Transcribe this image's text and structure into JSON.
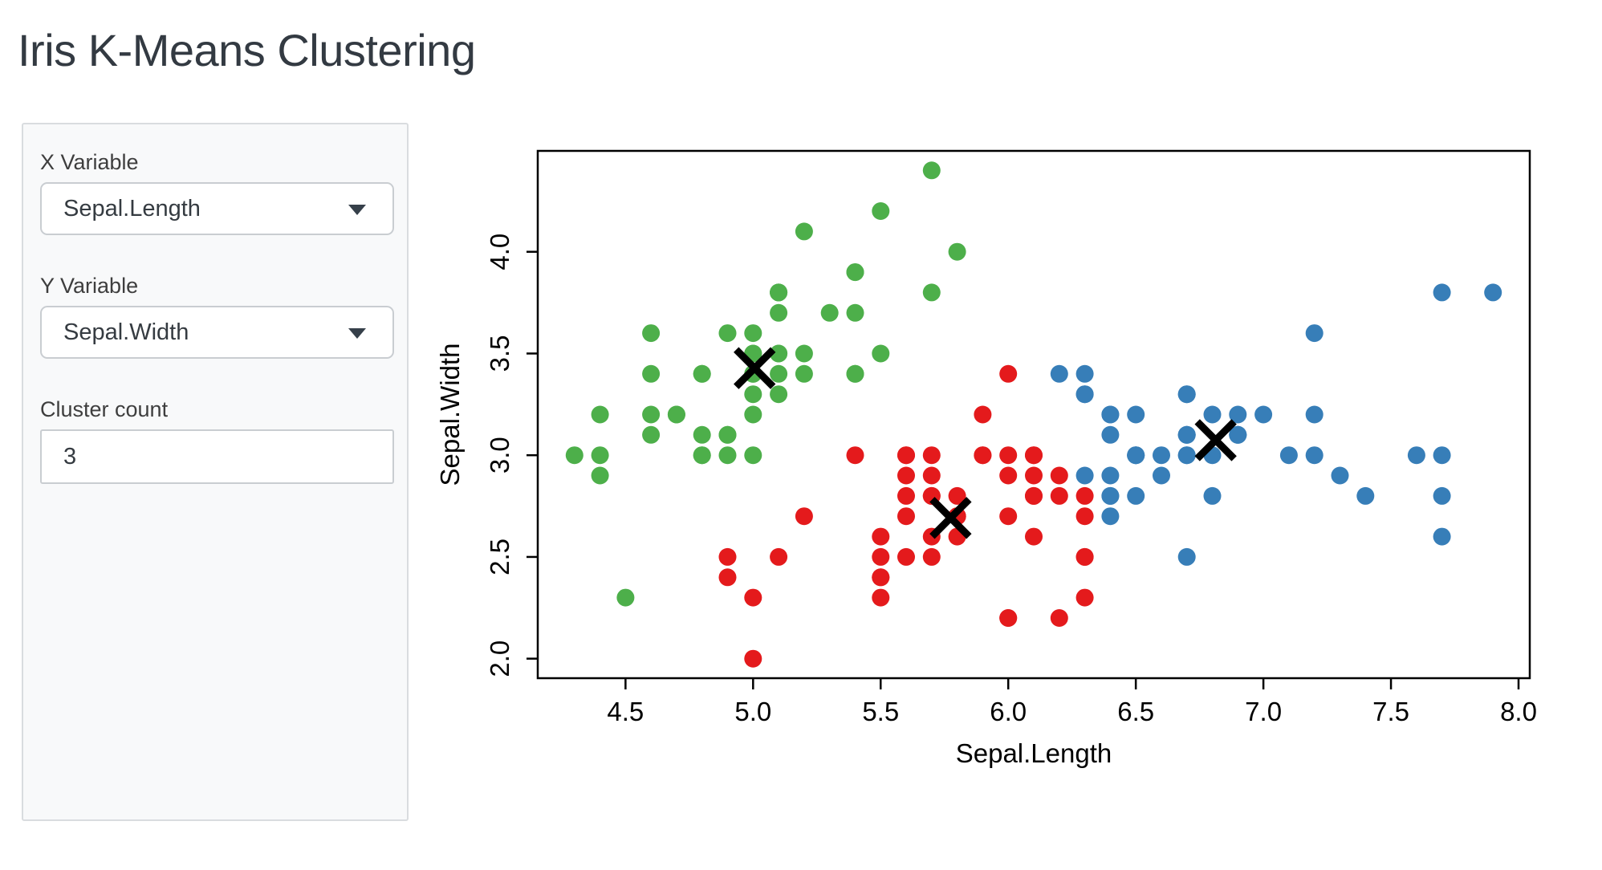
{
  "page": {
    "title": "Iris K-Means Clustering"
  },
  "sidebar": {
    "x_variable": {
      "label": "X Variable",
      "value": "Sepal.Length"
    },
    "y_variable": {
      "label": "Y Variable",
      "value": "Sepal.Width"
    },
    "cluster_count": {
      "label": "Cluster count",
      "value": "3"
    }
  },
  "chart_data": {
    "type": "scatter",
    "xlabel": "Sepal.Length",
    "ylabel": "Sepal.Width",
    "xlim": [
      4.156,
      8.044
    ],
    "ylim": [
      1.904,
      4.496
    ],
    "x_ticks": [
      4.5,
      5.0,
      5.5,
      6.0,
      6.5,
      7.0,
      7.5,
      8.0
    ],
    "y_ticks": [
      2.0,
      2.5,
      3.0,
      3.5,
      4.0
    ],
    "grid": false,
    "point_radius": 11,
    "frame_color": "#000000",
    "series": [
      {
        "name": "cluster-green",
        "color": "#4DAF4A",
        "points": [
          [
            5.1,
            3.5
          ],
          [
            4.9,
            3.0
          ],
          [
            4.7,
            3.2
          ],
          [
            4.6,
            3.1
          ],
          [
            5.0,
            3.6
          ],
          [
            5.4,
            3.9
          ],
          [
            4.6,
            3.4
          ],
          [
            5.0,
            3.4
          ],
          [
            4.4,
            2.9
          ],
          [
            4.9,
            3.1
          ],
          [
            5.4,
            3.7
          ],
          [
            4.8,
            3.4
          ],
          [
            4.8,
            3.0
          ],
          [
            4.3,
            3.0
          ],
          [
            5.8,
            4.0
          ],
          [
            5.7,
            4.4
          ],
          [
            5.4,
            3.9
          ],
          [
            5.1,
            3.5
          ],
          [
            5.7,
            3.8
          ],
          [
            5.1,
            3.8
          ],
          [
            5.4,
            3.4
          ],
          [
            5.1,
            3.7
          ],
          [
            4.6,
            3.6
          ],
          [
            5.1,
            3.3
          ],
          [
            4.8,
            3.4
          ],
          [
            5.0,
            3.0
          ],
          [
            5.0,
            3.4
          ],
          [
            5.2,
            3.5
          ],
          [
            5.2,
            3.4
          ],
          [
            4.7,
            3.2
          ],
          [
            4.8,
            3.1
          ],
          [
            5.4,
            3.4
          ],
          [
            5.2,
            4.1
          ],
          [
            5.5,
            4.2
          ],
          [
            4.9,
            3.1
          ],
          [
            5.0,
            3.2
          ],
          [
            5.5,
            3.5
          ],
          [
            4.9,
            3.6
          ],
          [
            4.4,
            3.0
          ],
          [
            5.1,
            3.4
          ],
          [
            5.0,
            3.5
          ],
          [
            4.5,
            2.3
          ],
          [
            4.4,
            3.2
          ],
          [
            5.0,
            3.5
          ],
          [
            5.1,
            3.8
          ],
          [
            4.8,
            3.0
          ],
          [
            5.1,
            3.8
          ],
          [
            4.6,
            3.2
          ],
          [
            5.3,
            3.7
          ],
          [
            5.0,
            3.3
          ]
        ]
      },
      {
        "name": "cluster-red",
        "color": "#E41A1C",
        "points": [
          [
            5.5,
            2.3
          ],
          [
            5.7,
            2.8
          ],
          [
            4.9,
            2.4
          ],
          [
            5.2,
            2.7
          ],
          [
            5.0,
            2.0
          ],
          [
            5.9,
            3.0
          ],
          [
            6.0,
            2.2
          ],
          [
            6.1,
            2.9
          ],
          [
            5.6,
            2.9
          ],
          [
            5.6,
            3.0
          ],
          [
            5.8,
            2.7
          ],
          [
            6.2,
            2.2
          ],
          [
            5.6,
            2.5
          ],
          [
            5.9,
            3.2
          ],
          [
            6.1,
            2.8
          ],
          [
            6.3,
            2.5
          ],
          [
            6.1,
            2.8
          ],
          [
            6.0,
            2.9
          ],
          [
            5.7,
            2.6
          ],
          [
            5.5,
            2.4
          ],
          [
            5.5,
            2.4
          ],
          [
            5.8,
            2.7
          ],
          [
            6.0,
            2.7
          ],
          [
            5.4,
            3.0
          ],
          [
            6.0,
            3.4
          ],
          [
            6.3,
            2.3
          ],
          [
            5.6,
            3.0
          ],
          [
            5.5,
            2.5
          ],
          [
            5.5,
            2.6
          ],
          [
            6.1,
            3.0
          ],
          [
            5.8,
            2.6
          ],
          [
            5.0,
            2.3
          ],
          [
            5.6,
            2.7
          ],
          [
            5.7,
            3.0
          ],
          [
            5.7,
            2.9
          ],
          [
            6.2,
            2.9
          ],
          [
            5.1,
            2.5
          ],
          [
            5.7,
            2.8
          ],
          [
            5.8,
            2.7
          ],
          [
            4.9,
            2.5
          ],
          [
            5.7,
            2.5
          ],
          [
            5.8,
            2.8
          ],
          [
            6.0,
            2.2
          ],
          [
            5.6,
            2.8
          ],
          [
            6.3,
            2.7
          ],
          [
            6.2,
            2.8
          ],
          [
            6.1,
            3.0
          ],
          [
            6.3,
            2.8
          ],
          [
            6.1,
            2.6
          ],
          [
            6.0,
            3.0
          ],
          [
            5.8,
            2.7
          ],
          [
            6.3,
            2.5
          ],
          [
            5.9,
            3.0
          ]
        ]
      },
      {
        "name": "cluster-blue",
        "color": "#377EB8",
        "points": [
          [
            7.0,
            3.2
          ],
          [
            6.4,
            3.2
          ],
          [
            6.9,
            3.1
          ],
          [
            6.5,
            2.8
          ],
          [
            6.3,
            3.3
          ],
          [
            6.6,
            2.9
          ],
          [
            6.7,
            3.1
          ],
          [
            6.4,
            2.9
          ],
          [
            6.6,
            3.0
          ],
          [
            6.8,
            2.8
          ],
          [
            6.7,
            3.0
          ],
          [
            6.7,
            3.1
          ],
          [
            6.3,
            3.3
          ],
          [
            7.1,
            3.0
          ],
          [
            6.3,
            2.9
          ],
          [
            6.5,
            3.0
          ],
          [
            7.6,
            3.0
          ],
          [
            7.3,
            2.9
          ],
          [
            6.7,
            2.5
          ],
          [
            7.2,
            3.6
          ],
          [
            6.5,
            3.2
          ],
          [
            6.4,
            2.7
          ],
          [
            6.8,
            3.0
          ],
          [
            6.4,
            3.2
          ],
          [
            6.5,
            3.0
          ],
          [
            7.7,
            3.8
          ],
          [
            7.7,
            2.6
          ],
          [
            6.9,
            3.2
          ],
          [
            7.7,
            2.8
          ],
          [
            6.7,
            3.3
          ],
          [
            7.2,
            3.2
          ],
          [
            6.4,
            2.8
          ],
          [
            7.2,
            3.0
          ],
          [
            7.4,
            2.8
          ],
          [
            7.9,
            3.8
          ],
          [
            6.4,
            2.8
          ],
          [
            7.7,
            3.0
          ],
          [
            6.3,
            3.4
          ],
          [
            6.4,
            3.1
          ],
          [
            6.9,
            3.1
          ],
          [
            6.7,
            3.1
          ],
          [
            6.9,
            3.1
          ],
          [
            6.8,
            3.2
          ],
          [
            6.7,
            3.3
          ],
          [
            6.7,
            3.0
          ],
          [
            6.5,
            3.0
          ],
          [
            6.2,
            3.4
          ]
        ]
      }
    ],
    "centers": [
      {
        "x": 5.006,
        "y": 3.428
      },
      {
        "x": 5.774,
        "y": 2.692
      },
      {
        "x": 6.813,
        "y": 3.074
      }
    ],
    "center_marker": {
      "shape": "x",
      "color": "#000000",
      "half_size": 23,
      "stroke_width": 9
    }
  }
}
